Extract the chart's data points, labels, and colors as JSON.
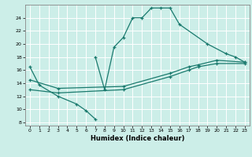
{
  "xlabel": "Humidex (Indice chaleur)",
  "bg_color": "#cceee8",
  "line_color": "#1a7a6e",
  "grid_color": "#ffffff",
  "xlim": [
    -0.5,
    23.5
  ],
  "ylim": [
    7.5,
    26.0
  ],
  "xticks": [
    0,
    1,
    2,
    3,
    4,
    5,
    6,
    7,
    8,
    9,
    10,
    11,
    12,
    13,
    14,
    15,
    16,
    17,
    18,
    19,
    20,
    21,
    22,
    23
  ],
  "yticks": [
    8,
    10,
    12,
    14,
    16,
    18,
    20,
    22,
    24
  ],
  "line_zigzag_x": [
    0,
    1,
    3,
    5,
    6,
    7
  ],
  "line_zigzag_y": [
    16.5,
    13.7,
    12.0,
    10.8,
    9.8,
    8.5
  ],
  "line_peak_x": [
    7,
    8,
    9,
    10,
    11,
    12,
    13,
    14,
    15,
    16,
    19,
    21,
    22,
    23
  ],
  "line_peak_y": [
    18.0,
    13.0,
    19.5,
    21.0,
    24.0,
    24.0,
    25.5,
    25.5,
    25.5,
    23.0,
    20.0,
    18.5,
    18.0,
    17.2
  ],
  "line_diag1_x": [
    0,
    3,
    10,
    15,
    17,
    18,
    20,
    23
  ],
  "line_diag1_y": [
    14.5,
    13.2,
    13.5,
    15.5,
    16.5,
    16.8,
    17.5,
    17.2
  ],
  "line_diag2_x": [
    0,
    3,
    10,
    15,
    17,
    18,
    20,
    23
  ],
  "line_diag2_y": [
    13.0,
    12.5,
    13.0,
    15.0,
    16.0,
    16.5,
    17.0,
    17.0
  ]
}
